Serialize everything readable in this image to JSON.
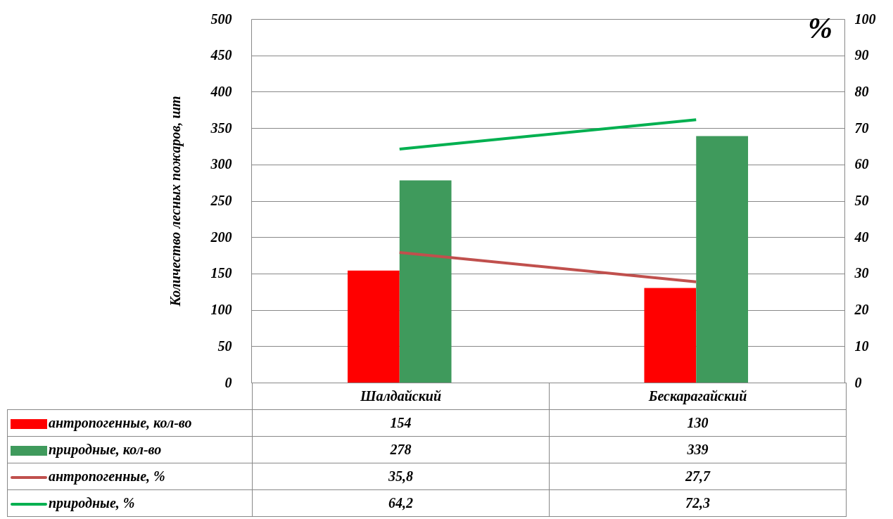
{
  "chart_data": {
    "type": "bar",
    "ylabel": "Количество лесных пожаров, шт",
    "y2label": "%",
    "categories": [
      "Шалдайский",
      "Бескарагайский"
    ],
    "series": [
      {
        "name": "антропогенные, кол-во",
        "color": "#ff0000",
        "values": [
          154,
          130
        ],
        "value_labels": [
          "154",
          "130"
        ]
      },
      {
        "name": "природные, кол-во",
        "color": "#3f9a5c",
        "values": [
          278,
          339
        ],
        "value_labels": [
          "278",
          "339"
        ]
      },
      {
        "name": "антропогенные, %",
        "type": "line",
        "axis": "y2",
        "color": "#c0504d",
        "values": [
          35.8,
          27.7
        ],
        "value_labels": [
          "35,8",
          "27,7"
        ]
      },
      {
        "name": "природные, %",
        "type": "line",
        "axis": "y2",
        "color": "#00b050",
        "values": [
          64.2,
          72.3
        ],
        "value_labels": [
          "64,2",
          "72,3"
        ]
      }
    ],
    "ylim": [
      0,
      500
    ],
    "yticks": [
      0,
      50,
      100,
      150,
      200,
      250,
      300,
      350,
      400,
      450,
      500
    ],
    "y2lim": [
      0,
      100
    ],
    "y2ticks": [
      0,
      10,
      20,
      30,
      40,
      50,
      60,
      70,
      80,
      90,
      100
    ],
    "grid": "y",
    "legend": "bottom"
  }
}
